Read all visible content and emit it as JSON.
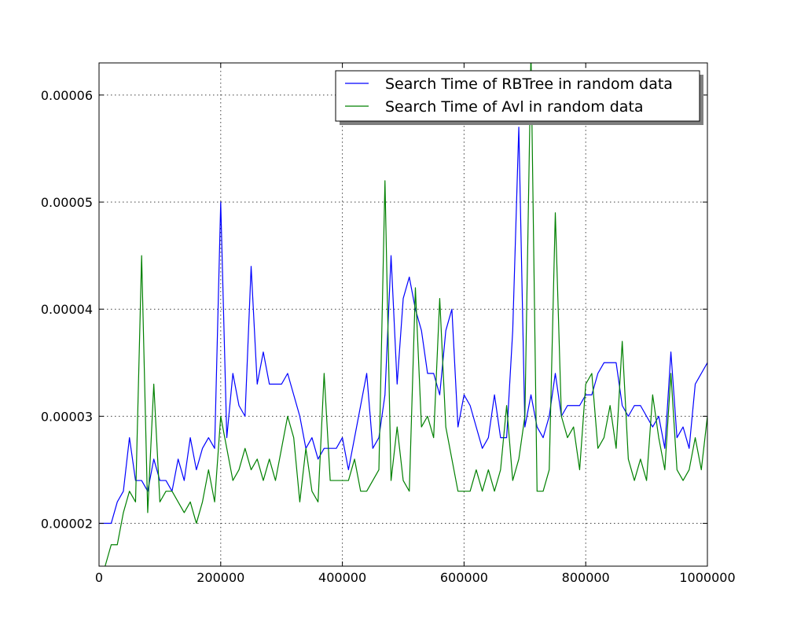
{
  "chart_data": {
    "type": "line",
    "title": "",
    "xlabel": "",
    "ylabel": "",
    "xlim": [
      0,
      1000000
    ],
    "ylim": [
      1.6e-05,
      6.3e-05
    ],
    "xticks": [
      0,
      200000,
      400000,
      600000,
      800000,
      1000000
    ],
    "xtick_labels": [
      "0",
      "200000",
      "400000",
      "600000",
      "800000",
      "1000000"
    ],
    "yticks": [
      2e-05,
      3e-05,
      4e-05,
      5e-05,
      6e-05
    ],
    "ytick_labels": [
      "0.00002",
      "0.00003",
      "0.00004",
      "0.00005",
      "0.00006"
    ],
    "grid": true,
    "legend_position": "top-right",
    "x": [
      0,
      10000,
      20000,
      30000,
      40000,
      50000,
      60000,
      70000,
      80000,
      90000,
      100000,
      110000,
      120000,
      130000,
      140000,
      150000,
      160000,
      170000,
      180000,
      190000,
      200000,
      210000,
      220000,
      230000,
      240000,
      250000,
      260000,
      270000,
      280000,
      290000,
      300000,
      310000,
      320000,
      330000,
      340000,
      350000,
      360000,
      370000,
      380000,
      390000,
      400000,
      410000,
      420000,
      430000,
      440000,
      450000,
      460000,
      470000,
      480000,
      490000,
      500000,
      510000,
      520000,
      530000,
      540000,
      550000,
      560000,
      570000,
      580000,
      590000,
      600000,
      610000,
      620000,
      630000,
      640000,
      650000,
      660000,
      670000,
      680000,
      690000,
      700000,
      710000,
      720000,
      730000,
      740000,
      750000,
      760000,
      770000,
      780000,
      790000,
      800000,
      810000,
      820000,
      830000,
      840000,
      850000,
      860000,
      870000,
      880000,
      890000,
      900000,
      910000,
      920000,
      930000,
      940000,
      950000,
      960000,
      970000,
      980000,
      990000,
      1000000
    ],
    "series": [
      {
        "name": "Search Time of RBTree in random data",
        "color": "#0000ff",
        "values": [
          2e-05,
          2e-05,
          2e-05,
          2.2e-05,
          2.3e-05,
          2.8e-05,
          2.4e-05,
          2.4e-05,
          2.3e-05,
          2.6e-05,
          2.4e-05,
          2.4e-05,
          2.3e-05,
          2.6e-05,
          2.4e-05,
          2.8e-05,
          2.5e-05,
          2.7e-05,
          2.8e-05,
          2.7e-05,
          5e-05,
          2.8e-05,
          3.4e-05,
          3.1e-05,
          3e-05,
          4.4e-05,
          3.3e-05,
          3.6e-05,
          3.3e-05,
          3.3e-05,
          3.3e-05,
          3.4e-05,
          3.2e-05,
          3e-05,
          2.7e-05,
          2.8e-05,
          2.6e-05,
          2.7e-05,
          2.7e-05,
          2.7e-05,
          2.8e-05,
          2.5e-05,
          2.8e-05,
          3.1e-05,
          3.4e-05,
          2.7e-05,
          2.8e-05,
          3.2e-05,
          4.5e-05,
          3.3e-05,
          4.1e-05,
          4.3e-05,
          4e-05,
          3.8e-05,
          3.4e-05,
          3.4e-05,
          3.2e-05,
          3.8e-05,
          4e-05,
          2.9e-05,
          3.2e-05,
          3.1e-05,
          2.9e-05,
          2.7e-05,
          2.8e-05,
          3.2e-05,
          2.8e-05,
          2.8e-05,
          3.8e-05,
          5.7e-05,
          2.9e-05,
          3.2e-05,
          2.9e-05,
          2.8e-05,
          3e-05,
          3.4e-05,
          3e-05,
          3.1e-05,
          3.1e-05,
          3.1e-05,
          3.2e-05,
          3.2e-05,
          3.4e-05,
          3.5e-05,
          3.5e-05,
          3.5e-05,
          3.1e-05,
          3e-05,
          3.1e-05,
          3.1e-05,
          3e-05,
          2.9e-05,
          3e-05,
          2.7e-05,
          3.6e-05,
          2.8e-05,
          2.9e-05,
          2.7e-05,
          3.3e-05,
          3.4e-05,
          3.5e-05
        ]
      },
      {
        "name": "Search Time of Avl in random data",
        "color": "#008000",
        "values": [
          1.5e-05,
          1.6e-05,
          1.8e-05,
          1.8e-05,
          2.1e-05,
          2.3e-05,
          2.2e-05,
          4.5e-05,
          2.1e-05,
          3.3e-05,
          2.2e-05,
          2.3e-05,
          2.3e-05,
          2.2e-05,
          2.1e-05,
          2.2e-05,
          2e-05,
          2.2e-05,
          2.5e-05,
          2.2e-05,
          3e-05,
          2.7e-05,
          2.4e-05,
          2.5e-05,
          2.7e-05,
          2.5e-05,
          2.6e-05,
          2.4e-05,
          2.6e-05,
          2.4e-05,
          2.7e-05,
          3e-05,
          2.8e-05,
          2.2e-05,
          2.7e-05,
          2.3e-05,
          2.2e-05,
          3.4e-05,
          2.4e-05,
          2.4e-05,
          2.4e-05,
          2.4e-05,
          2.6e-05,
          2.3e-05,
          2.3e-05,
          2.4e-05,
          2.5e-05,
          5.2e-05,
          2.4e-05,
          2.9e-05,
          2.4e-05,
          2.3e-05,
          4.2e-05,
          2.9e-05,
          3e-05,
          2.8e-05,
          4.1e-05,
          2.9e-05,
          2.6e-05,
          2.3e-05,
          2.3e-05,
          2.3e-05,
          2.5e-05,
          2.3e-05,
          2.5e-05,
          2.3e-05,
          2.5e-05,
          3.1e-05,
          2.4e-05,
          2.6e-05,
          3e-05,
          6.4e-05,
          2.3e-05,
          2.3e-05,
          2.5e-05,
          4.9e-05,
          3e-05,
          2.8e-05,
          2.9e-05,
          2.5e-05,
          3.3e-05,
          3.4e-05,
          2.7e-05,
          2.8e-05,
          3.1e-05,
          2.7e-05,
          3.7e-05,
          2.6e-05,
          2.4e-05,
          2.6e-05,
          2.4e-05,
          3.2e-05,
          2.8e-05,
          2.5e-05,
          3.4e-05,
          2.5e-05,
          2.4e-05,
          2.5e-05,
          2.8e-05,
          2.5e-05,
          3e-05
        ]
      }
    ]
  }
}
